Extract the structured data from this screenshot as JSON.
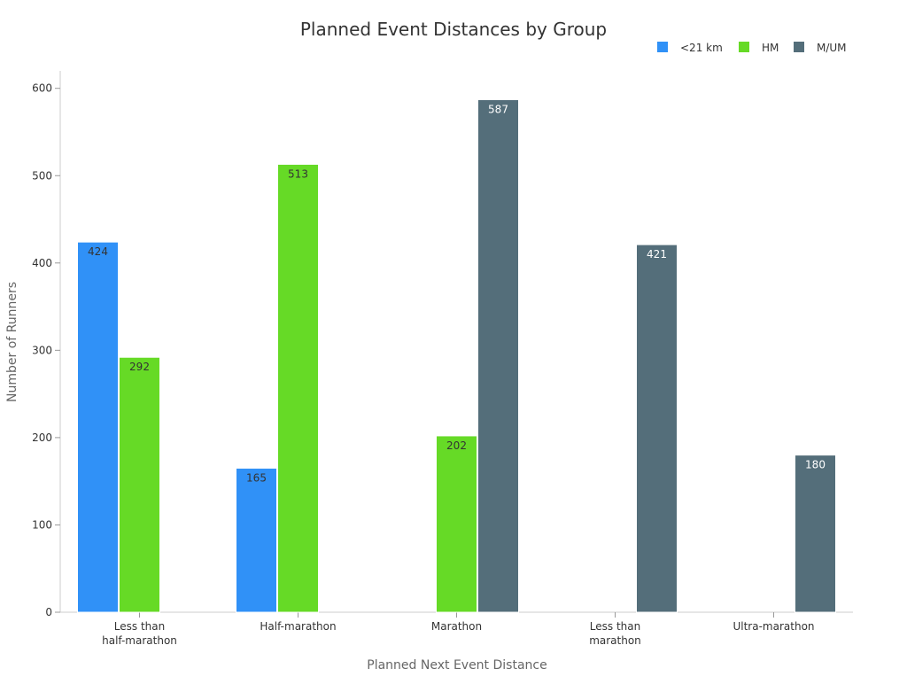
{
  "chart_data": {
    "type": "bar",
    "title": "Planned Event Distances by Group",
    "xlabel": "Planned Next Event Distance",
    "ylabel": "Number of Runners",
    "categories": [
      [
        "Less than",
        "half-marathon"
      ],
      [
        "Half-marathon"
      ],
      [
        "Marathon"
      ],
      [
        "Less than",
        "marathon"
      ],
      [
        "Ultra-marathon"
      ]
    ],
    "series": [
      {
        "name": "<21 km",
        "color": "#3091f7",
        "label_color": "#333333",
        "values": [
          424,
          165,
          null,
          null,
          null
        ]
      },
      {
        "name": "HM",
        "color": "#66da26",
        "label_color": "#333333",
        "values": [
          292,
          513,
          202,
          null,
          null
        ]
      },
      {
        "name": "M/UM",
        "color": "#546e7a",
        "label_color": "#ffffff",
        "values": [
          null,
          null,
          587,
          421,
          180
        ]
      }
    ],
    "ylim": [
      0,
      620
    ],
    "yticks": [
      0,
      100,
      200,
      300,
      400,
      500,
      600
    ],
    "legend_position": "top-right",
    "grid": false
  }
}
